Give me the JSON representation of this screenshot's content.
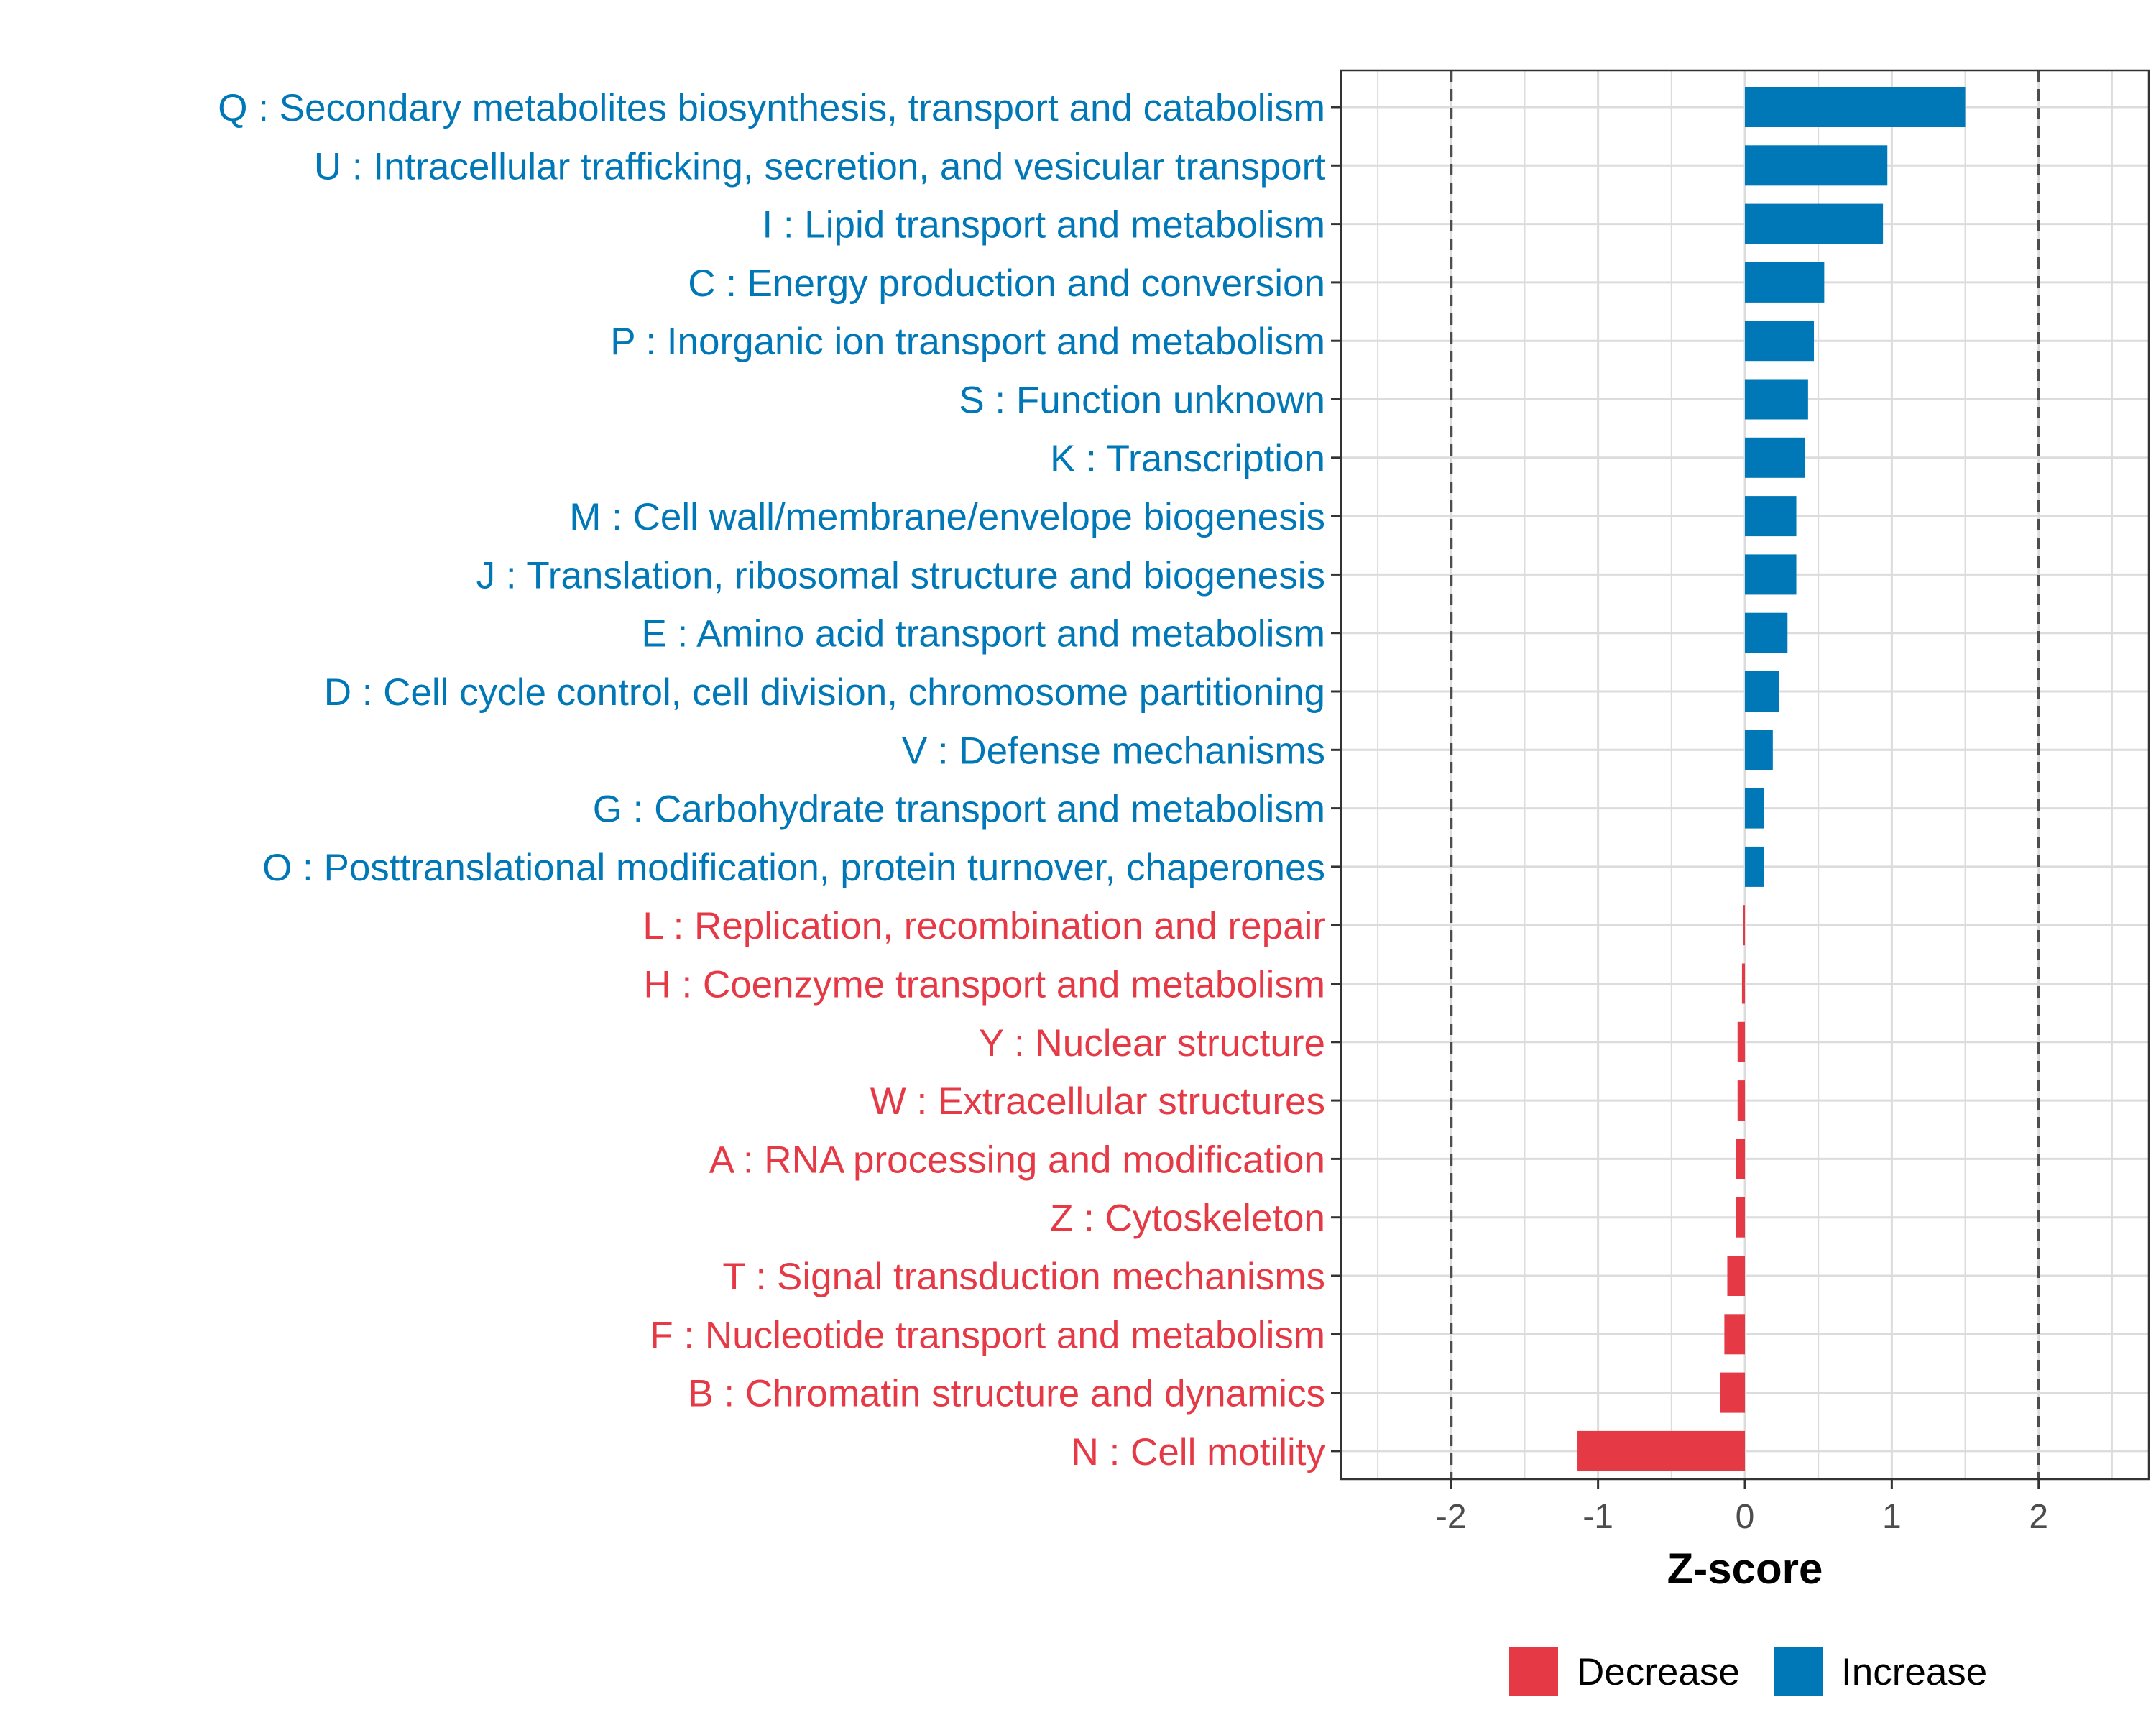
{
  "chart_data": {
    "type": "bar",
    "orientation": "horizontal",
    "xlabel": "Z-score",
    "xlim": [
      -2.75,
      2.75
    ],
    "xticks": [
      -2,
      -1,
      0,
      1,
      2
    ],
    "xtick_labels": [
      "-2",
      "-1",
      "0",
      "1",
      "2"
    ],
    "reference_lines": [
      -2,
      2
    ],
    "grid": true,
    "legend_position": "bottom",
    "legend": [
      {
        "label": "Decrease",
        "color": "#E63946"
      },
      {
        "label": "Increase",
        "color": "#0077B6"
      }
    ],
    "colors": {
      "Decrease": "#E63946",
      "Increase": "#0077B6"
    },
    "categories": [
      "Q : Secondary metabolites biosynthesis, transport and catabolism",
      "U : Intracellular trafficking, secretion, and vesicular transport",
      "I : Lipid transport and metabolism",
      "C : Energy production and conversion",
      "P : Inorganic ion transport and metabolism",
      "S : Function unknown",
      "K : Transcription",
      "M : Cell wall/membrane/envelope biogenesis",
      "J : Translation, ribosomal structure and biogenesis",
      "E : Amino acid transport and metabolism",
      "D : Cell cycle control, cell division, chromosome partitioning",
      "V : Defense mechanisms",
      "G : Carbohydrate transport and metabolism",
      "O : Posttranslational modification, protein turnover, chaperones",
      "L : Replication, recombination and repair",
      "H : Coenzyme transport and metabolism",
      "Y : Nuclear structure",
      "W : Extracellular structures",
      "A : RNA processing and modification",
      "Z : Cytoskeleton",
      "T : Signal transduction mechanisms",
      "F : Nucleotide transport and metabolism",
      "B : Chromatin structure and dynamics",
      "N : Cell motility"
    ],
    "values": [
      1.5,
      0.97,
      0.94,
      0.54,
      0.47,
      0.43,
      0.41,
      0.35,
      0.35,
      0.29,
      0.23,
      0.19,
      0.13,
      0.13,
      -0.01,
      -0.02,
      -0.05,
      -0.05,
      -0.06,
      -0.06,
      -0.12,
      -0.14,
      -0.17,
      -1.14
    ],
    "groups": [
      "Increase",
      "Increase",
      "Increase",
      "Increase",
      "Increase",
      "Increase",
      "Increase",
      "Increase",
      "Increase",
      "Increase",
      "Increase",
      "Increase",
      "Increase",
      "Increase",
      "Decrease",
      "Decrease",
      "Decrease",
      "Decrease",
      "Decrease",
      "Decrease",
      "Decrease",
      "Decrease",
      "Decrease",
      "Decrease"
    ]
  }
}
